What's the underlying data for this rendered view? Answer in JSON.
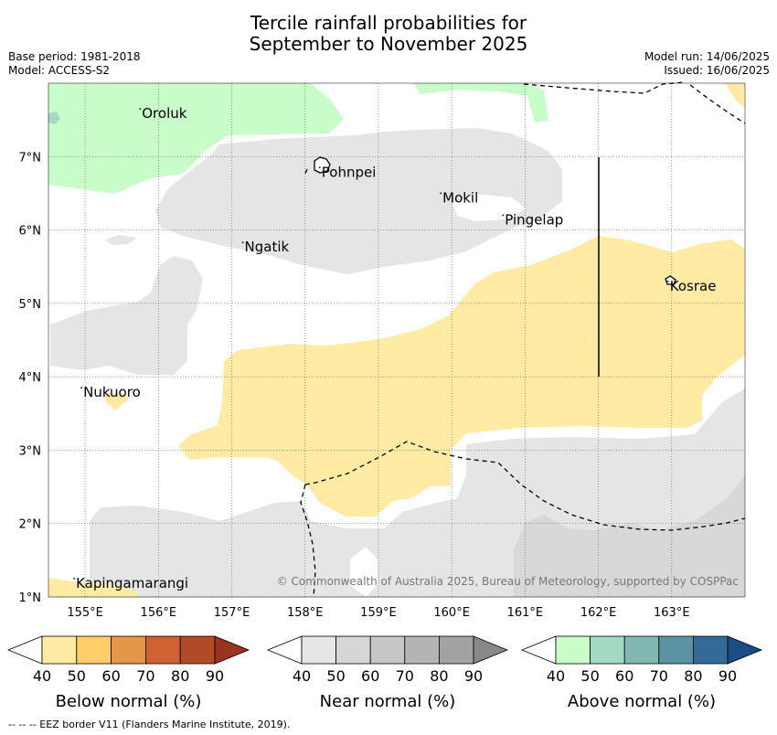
{
  "title": {
    "line1": "Tercile rainfall probabilities for",
    "line2": "September to November 2025"
  },
  "meta": {
    "base_period": "Base period: 1981-2018",
    "model": "Model: ACCESS-S2",
    "model_run": "Model run: 14/06/2025",
    "issued": "Issued: 16/06/2025"
  },
  "map": {
    "lon_range": [
      154.5,
      164.0
    ],
    "lat_range": [
      1.0,
      8.0
    ],
    "lon_ticks": [
      "155°E",
      "156°E",
      "157°E",
      "158°E",
      "159°E",
      "160°E",
      "161°E",
      "162°E",
      "163°E"
    ],
    "lat_ticks": [
      "1°N",
      "2°N",
      "3°N",
      "4°N",
      "5°N",
      "6°N",
      "7°N"
    ],
    "places": [
      {
        "name": "Oroluk",
        "lon": 155.75,
        "lat": 7.65
      },
      {
        "name": "Pohnpei",
        "lon": 158.2,
        "lat": 6.85
      },
      {
        "name": "Mokil",
        "lon": 159.85,
        "lat": 6.5
      },
      {
        "name": "Pingelap",
        "lon": 160.7,
        "lat": 6.2
      },
      {
        "name": "Ngatik",
        "lon": 157.15,
        "lat": 5.83
      },
      {
        "name": "Kosrae",
        "lon": 162.95,
        "lat": 5.3
      },
      {
        "name": "Nukuoro",
        "lon": 154.95,
        "lat": 3.85
      },
      {
        "name": "Kapingamarangi",
        "lon": 154.85,
        "lat": 1.25
      }
    ],
    "credit": "© Commonwealth of Australia 2025, Bureau of Meteorology, supported by COSPPac"
  },
  "legends": [
    {
      "title": "Below normal (%)",
      "ticks": [
        "40",
        "50",
        "60",
        "70",
        "80",
        "90"
      ],
      "colors": [
        "#ffeba3",
        "#ffcd69",
        "#e39747",
        "#cf6232",
        "#b14a26",
        "#9a3320"
      ]
    },
    {
      "title": "Near normal (%)",
      "ticks": [
        "40",
        "50",
        "60",
        "70",
        "80",
        "90"
      ],
      "colors": [
        "#e6e6e6",
        "#d6d6d6",
        "#c6c6c6",
        "#b4b4b4",
        "#a2a2a2",
        "#888888"
      ]
    },
    {
      "title": "Above normal (%)",
      "ticks": [
        "40",
        "50",
        "60",
        "70",
        "80",
        "90"
      ],
      "colors": [
        "#c8fcc8",
        "#a3d9c2",
        "#82b7b1",
        "#5a93a2",
        "#346a96",
        "#1a4c87"
      ]
    }
  ],
  "footnote": "--  --  -- EEZ border V11 (Flanders Marine Institute, 2019)."
}
